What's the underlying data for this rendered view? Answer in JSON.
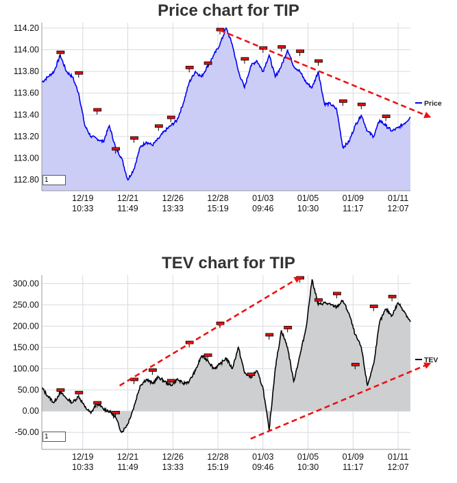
{
  "charts_ui": {
    "price": {
      "title": "Price chart for TIP",
      "page_input": "1",
      "legend": "Price"
    },
    "tev": {
      "title": "TEV chart for TIP",
      "page_input": "1",
      "legend": "TEV"
    }
  },
  "chart_data": [
    {
      "type": "area",
      "title": "Price chart for TIP",
      "xlabel": "",
      "ylabel": "",
      "x_ticks": [
        "12/19 10:33",
        "12/21 11:49",
        "12/26 13:33",
        "12/28 15:19",
        "01/03 09:46",
        "01/05 10:30",
        "01/09 11:17",
        "01/11 12:07"
      ],
      "ylim": [
        112.7,
        114.25
      ],
      "y_ticks": [
        112.8,
        113.0,
        113.2,
        113.4,
        113.6,
        113.8,
        114.0,
        114.2
      ],
      "grid": true,
      "legend": "right",
      "series": [
        {
          "name": "Price",
          "color": "#0000ee",
          "fill": "#cccdf7",
          "x": [
            0,
            0.3,
            0.6,
            0.9,
            1.2,
            1.5,
            1.8,
            2.1,
            2.4,
            2.7,
            3.0,
            3.3,
            3.6,
            3.9,
            4.2,
            4.5,
            4.8,
            5.1,
            5.4,
            5.7,
            6.0,
            6.3,
            6.6,
            6.9,
            7.2,
            7.5,
            7.8,
            8.1,
            8.4,
            8.7,
            9.0,
            9.3,
            9.6,
            9.9,
            10.2,
            10.5,
            10.8,
            11.1,
            11.4,
            11.7,
            12.0,
            12.3,
            12.6,
            12.9,
            13.2,
            13.5,
            13.8,
            14.1,
            14.4,
            14.7,
            15.0,
            15.3,
            15.6,
            15.9,
            16.2,
            16.5,
            16.8,
            17.1,
            17.4,
            17.7,
            18.0
          ],
          "y": [
            113.7,
            113.75,
            113.8,
            113.95,
            113.8,
            113.75,
            113.6,
            113.3,
            113.2,
            113.18,
            113.15,
            113.3,
            113.1,
            113.0,
            112.8,
            112.9,
            113.1,
            113.15,
            113.12,
            113.18,
            113.25,
            113.3,
            113.35,
            113.5,
            113.7,
            113.8,
            113.75,
            113.85,
            113.95,
            114.05,
            114.2,
            114.05,
            113.8,
            113.65,
            113.85,
            113.9,
            113.8,
            113.95,
            113.75,
            113.85,
            114.0,
            113.85,
            113.8,
            113.7,
            113.65,
            113.8,
            113.5,
            113.5,
            113.45,
            113.1,
            113.15,
            113.3,
            113.4,
            113.25,
            113.2,
            113.35,
            113.3,
            113.25,
            113.28,
            113.32,
            113.38
          ]
        }
      ],
      "markers": [
        {
          "x": 0.9,
          "y": 113.97
        },
        {
          "x": 1.8,
          "y": 113.78
        },
        {
          "x": 2.7,
          "y": 113.44
        },
        {
          "x": 3.6,
          "y": 113.08
        },
        {
          "x": 4.5,
          "y": 113.18
        },
        {
          "x": 5.7,
          "y": 113.29
        },
        {
          "x": 6.3,
          "y": 113.37
        },
        {
          "x": 7.2,
          "y": 113.83
        },
        {
          "x": 8.1,
          "y": 113.87
        },
        {
          "x": 8.7,
          "y": 114.18
        },
        {
          "x": 9.9,
          "y": 113.91
        },
        {
          "x": 10.8,
          "y": 114.01
        },
        {
          "x": 11.7,
          "y": 114.02
        },
        {
          "x": 12.6,
          "y": 113.98
        },
        {
          "x": 13.5,
          "y": 113.89
        },
        {
          "x": 14.7,
          "y": 113.52
        },
        {
          "x": 15.6,
          "y": 113.49
        },
        {
          "x": 16.8,
          "y": 113.38
        }
      ],
      "trend_arrow": {
        "x1": 8.7,
        "y1": 114.18,
        "x2": 18.95,
        "y2": 113.38,
        "color": "#ee1111"
      }
    },
    {
      "type": "area",
      "title": "TEV chart for TIP",
      "xlabel": "",
      "ylabel": "",
      "x_ticks": [
        "12/19 10:33",
        "12/21 11:49",
        "12/26 13:33",
        "12/28 15:19",
        "01/03 09:46",
        "01/05 10:30",
        "01/09 11:17",
        "01/11 12:07"
      ],
      "ylim": [
        -90,
        320
      ],
      "y_ticks": [
        -50.0,
        0.0,
        50.0,
        100.0,
        150.0,
        200.0,
        250.0,
        300.0
      ],
      "grid": true,
      "legend": "right",
      "series": [
        {
          "name": "TEV",
          "color": "#000000",
          "fill": "#cdcfd1",
          "x": [
            0,
            0.3,
            0.6,
            0.9,
            1.2,
            1.5,
            1.8,
            2.1,
            2.4,
            2.7,
            3.0,
            3.3,
            3.6,
            3.9,
            4.2,
            4.5,
            4.8,
            5.1,
            5.4,
            5.7,
            6.0,
            6.3,
            6.6,
            6.9,
            7.2,
            7.5,
            7.8,
            8.1,
            8.4,
            8.7,
            9.0,
            9.3,
            9.6,
            9.9,
            10.2,
            10.5,
            10.8,
            11.1,
            11.4,
            11.7,
            12.0,
            12.3,
            12.6,
            12.9,
            13.2,
            13.5,
            13.8,
            14.1,
            14.4,
            14.7,
            15.0,
            15.3,
            15.6,
            15.9,
            16.2,
            16.5,
            16.8,
            17.1,
            17.4,
            17.7,
            18.0
          ],
          "y": [
            55,
            35,
            20,
            45,
            30,
            20,
            35,
            10,
            -5,
            20,
            5,
            0,
            -15,
            -50,
            -30,
            10,
            60,
            75,
            65,
            80,
            70,
            60,
            75,
            65,
            70,
            95,
            130,
            120,
            100,
            110,
            125,
            100,
            150,
            90,
            80,
            95,
            55,
            -45,
            100,
            190,
            150,
            70,
            130,
            195,
            310,
            250,
            255,
            250,
            245,
            260,
            230,
            180,
            150,
            60,
            110,
            210,
            240,
            225,
            255,
            235,
            210
          ]
        }
      ],
      "markers": [
        {
          "x": 0.9,
          "y": 48
        },
        {
          "x": 1.8,
          "y": 42
        },
        {
          "x": 2.7,
          "y": 18
        },
        {
          "x": 3.6,
          "y": -5
        },
        {
          "x": 4.5,
          "y": 73
        },
        {
          "x": 5.4,
          "y": 95
        },
        {
          "x": 6.3,
          "y": 70
        },
        {
          "x": 7.2,
          "y": 160
        },
        {
          "x": 8.1,
          "y": 130
        },
        {
          "x": 8.7,
          "y": 205
        },
        {
          "x": 10.2,
          "y": 85
        },
        {
          "x": 11.1,
          "y": 178
        },
        {
          "x": 12.0,
          "y": 195
        },
        {
          "x": 12.6,
          "y": 312
        },
        {
          "x": 13.5,
          "y": 260
        },
        {
          "x": 14.4,
          "y": 275
        },
        {
          "x": 15.3,
          "y": 108
        },
        {
          "x": 16.2,
          "y": 245
        },
        {
          "x": 17.1,
          "y": 268
        }
      ],
      "trend_arrows": [
        {
          "x1": 3.8,
          "y1": 60,
          "x2": 12.6,
          "y2": 315,
          "color": "#ee1111"
        },
        {
          "x1": 10.2,
          "y1": -65,
          "x2": 18.95,
          "y2": 112,
          "color": "#ee1111"
        }
      ]
    }
  ]
}
